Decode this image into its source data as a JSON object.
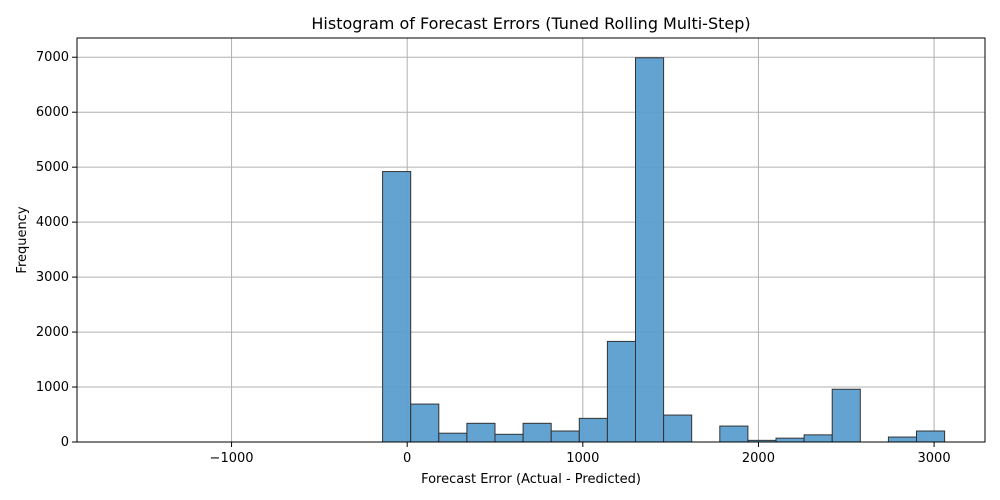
{
  "chart_data": {
    "type": "bar",
    "title": "Histogram of Forecast Errors (Tuned Rolling Multi-Step)",
    "xlabel": "Forecast Error (Actual - Predicted)",
    "ylabel": "Frequency",
    "xlim": [
      -1880,
      3290
    ],
    "ylim": [
      0,
      7350
    ],
    "grid": true,
    "bar_color": "#5b9ecf",
    "edge_color": "#333333",
    "xticks": [
      -1000,
      0,
      1000,
      2000,
      3000
    ],
    "xtick_labels": [
      "−1000",
      "0",
      "1000",
      "2000",
      "3000"
    ],
    "yticks": [
      0,
      1000,
      2000,
      3000,
      4000,
      5000,
      6000,
      7000
    ],
    "ytick_labels": [
      "0",
      "1000",
      "2000",
      "3000",
      "4000",
      "5000",
      "6000",
      "7000"
    ],
    "bin_edges": [
      -1740,
      -1580,
      -1420,
      -1260,
      -1100,
      -940,
      -780,
      -620,
      -460,
      -300,
      -140,
      20,
      180,
      340,
      500,
      660,
      820,
      980,
      1140,
      1300,
      1460,
      1620,
      1780,
      1940,
      2100,
      2260,
      2420,
      2580,
      2740,
      2900,
      3060
    ],
    "counts": [
      0,
      0,
      0,
      0,
      0,
      0,
      0,
      0,
      0,
      0,
      4920,
      690,
      160,
      340,
      140,
      340,
      200,
      430,
      1830,
      6990,
      490,
      0,
      290,
      30,
      70,
      130,
      960,
      0,
      90,
      200
    ]
  }
}
